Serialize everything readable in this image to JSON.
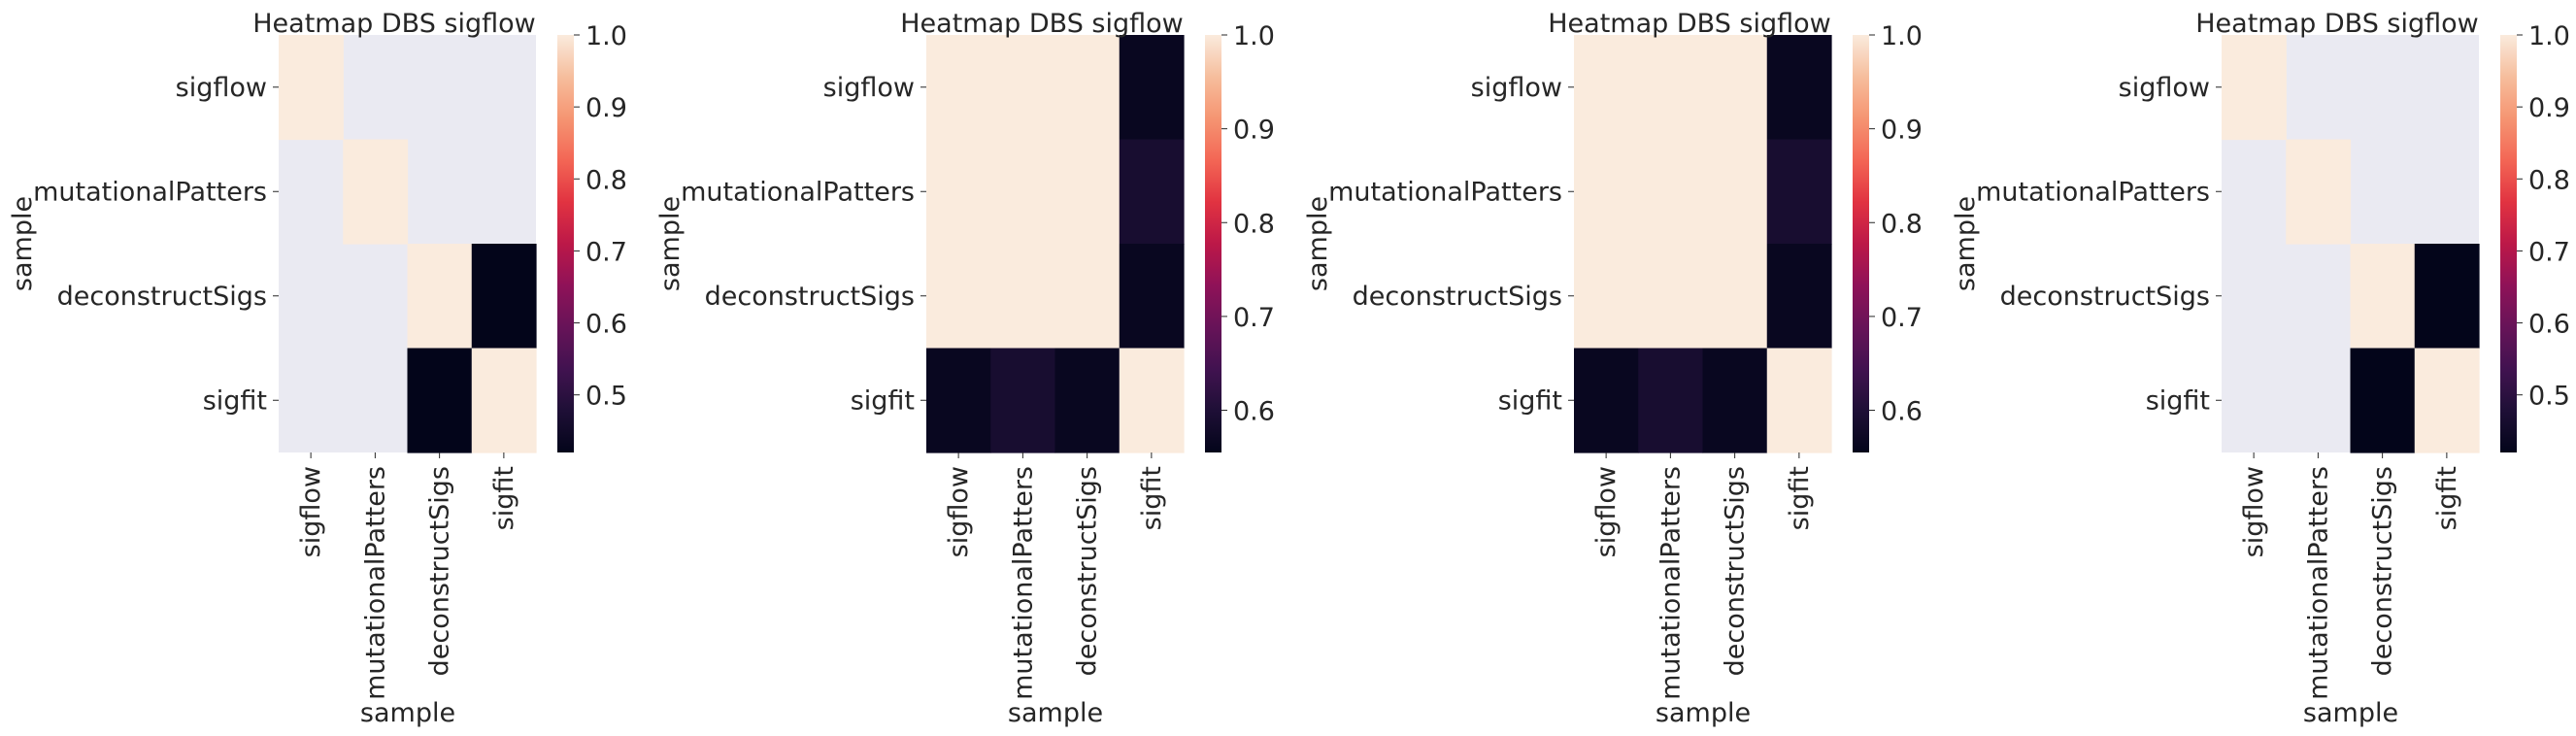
{
  "chart_data": [
    {
      "type": "heatmap",
      "title": "Heatmap DBS sigflow",
      "xlabel": "sample",
      "ylabel": "sample",
      "categories": [
        "sigflow",
        "mutationalPatters",
        "deconstructSigs",
        "sigfit"
      ],
      "values": [
        [
          1.0,
          null,
          null,
          null
        ],
        [
          null,
          1.0,
          null,
          null
        ],
        [
          null,
          null,
          1.0,
          0.42
        ],
        [
          null,
          null,
          0.42,
          1.0
        ]
      ],
      "colorbar": {
        "min": 0.42,
        "max": 1.0,
        "ticks": [
          "1.0",
          "0.9",
          "0.8",
          "0.7",
          "0.6",
          "0.5"
        ]
      },
      "missing_color": "#eaeaf2",
      "colormap": "rocket"
    },
    {
      "type": "heatmap",
      "title": "Heatmap DBS sigflow",
      "xlabel": "sample",
      "ylabel": "sample",
      "categories": [
        "sigflow",
        "mutationalPatters",
        "deconstructSigs",
        "sigfit"
      ],
      "values": [
        [
          1.0,
          1.0,
          1.0,
          0.565
        ],
        [
          1.0,
          1.0,
          1.0,
          0.59
        ],
        [
          1.0,
          1.0,
          1.0,
          0.565
        ],
        [
          0.565,
          0.59,
          0.565,
          1.0
        ]
      ],
      "colorbar": {
        "min": 0.555,
        "max": 1.0,
        "ticks": [
          "1.0",
          "0.9",
          "0.8",
          "0.7",
          "0.6"
        ]
      },
      "missing_color": "#eaeaf2",
      "colormap": "rocket"
    },
    {
      "type": "heatmap",
      "title": "Heatmap DBS sigflow",
      "xlabel": "sample",
      "ylabel": "sample",
      "categories": [
        "sigflow",
        "mutationalPatters",
        "deconstructSigs",
        "sigfit"
      ],
      "values": [
        [
          1.0,
          1.0,
          1.0,
          0.565
        ],
        [
          1.0,
          1.0,
          1.0,
          0.59
        ],
        [
          1.0,
          1.0,
          1.0,
          0.565
        ],
        [
          0.565,
          0.59,
          0.565,
          1.0
        ]
      ],
      "colorbar": {
        "min": 0.555,
        "max": 1.0,
        "ticks": [
          "1.0",
          "0.9",
          "0.8",
          "0.7",
          "0.6"
        ]
      },
      "missing_color": "#eaeaf2",
      "colormap": "rocket"
    },
    {
      "type": "heatmap",
      "title": "Heatmap DBS sigflow",
      "xlabel": "sample",
      "ylabel": "sample",
      "categories": [
        "sigflow",
        "mutationalPatters",
        "deconstructSigs",
        "sigfit"
      ],
      "values": [
        [
          1.0,
          null,
          null,
          null
        ],
        [
          null,
          1.0,
          null,
          null
        ],
        [
          null,
          null,
          1.0,
          0.42
        ],
        [
          null,
          null,
          0.42,
          1.0
        ]
      ],
      "colorbar": {
        "min": 0.42,
        "max": 1.0,
        "ticks": [
          "1.0",
          "0.9",
          "0.8",
          "0.7",
          "0.6",
          "0.5"
        ]
      },
      "missing_color": "#eaeaf2",
      "colormap": "rocket"
    }
  ]
}
